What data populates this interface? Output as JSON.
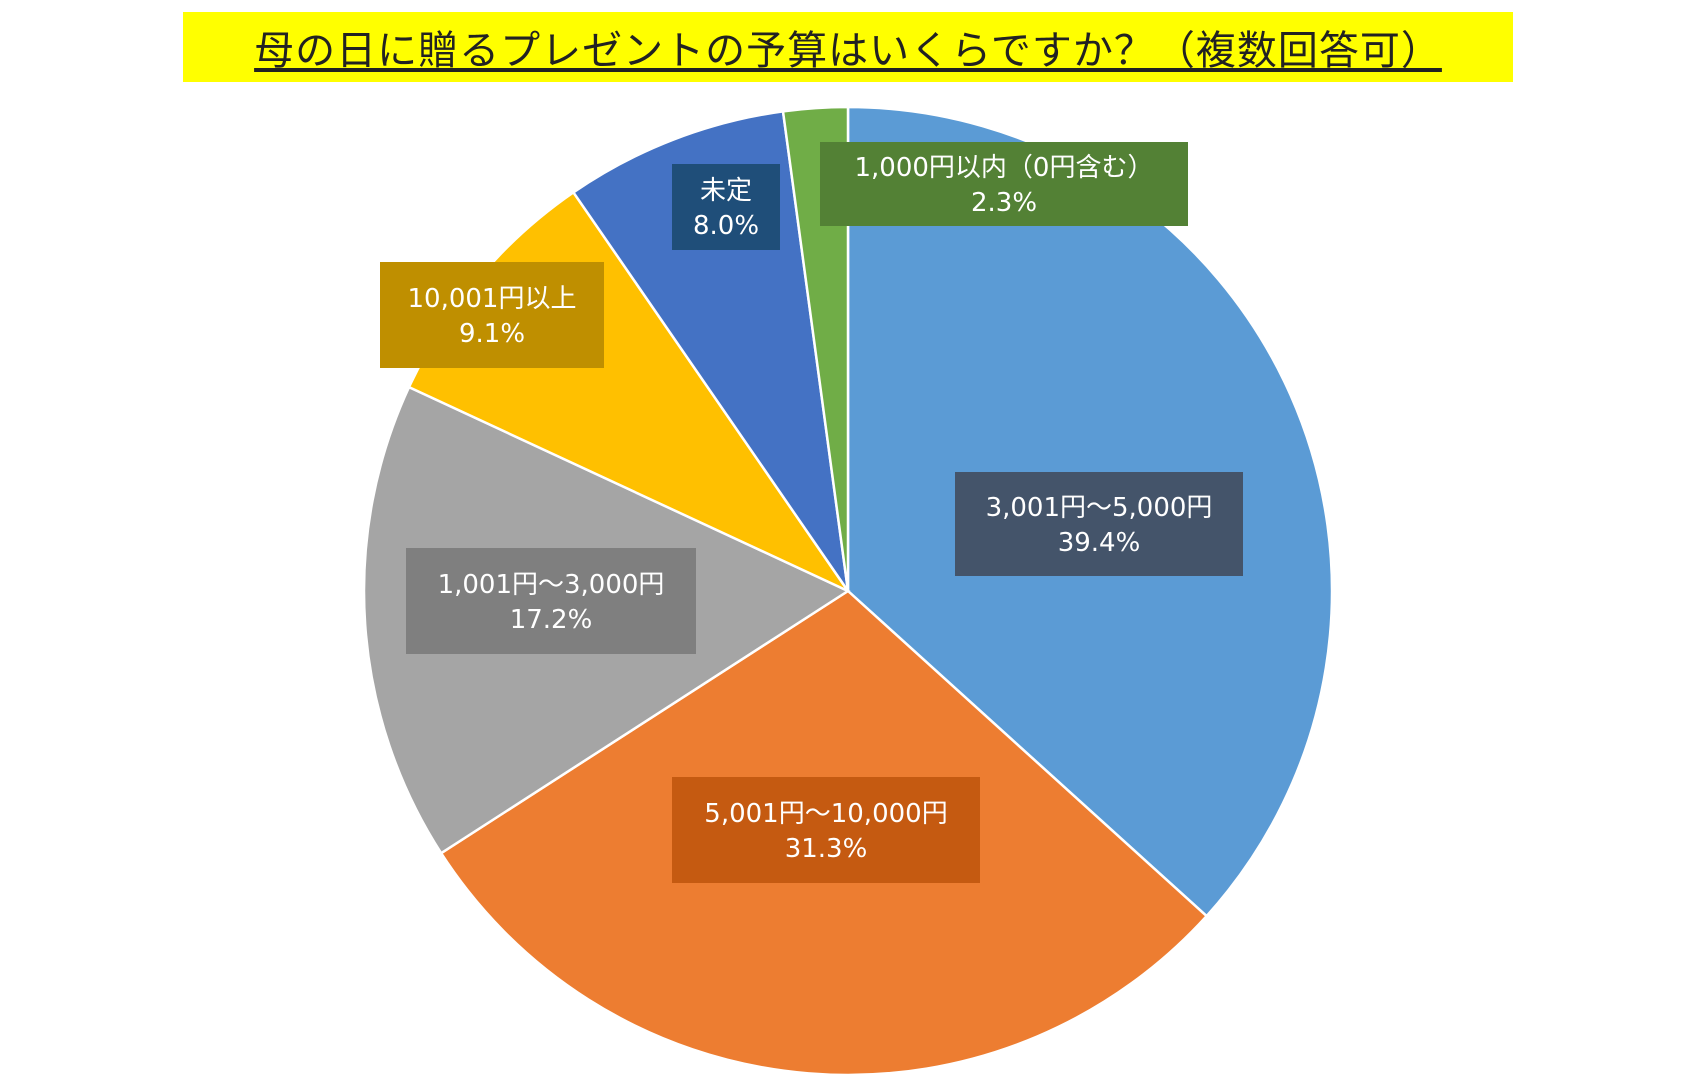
{
  "chart_data": {
    "type": "pie",
    "title": "母の日に贈るプレゼントの予算はいくらですか？（複数回答可）",
    "slices": [
      {
        "label": "3,001円～5,000円",
        "value": 39.4,
        "value_label": "39.4%",
        "color": "#5b9bd5",
        "label_bg": "#44546a"
      },
      {
        "label": "5,001円～10,000円",
        "value": 31.3,
        "value_label": "31.3%",
        "color": "#ed7d31",
        "label_bg": "#c55a11"
      },
      {
        "label": "1,001円～3,000円",
        "value": 17.2,
        "value_label": "17.2%",
        "color": "#a5a5a5",
        "label_bg": "#7f7f7f"
      },
      {
        "label": "10,001円以上",
        "value": 9.1,
        "value_label": "9.1%",
        "color": "#ffc000",
        "label_bg": "#bf8f00"
      },
      {
        "label": "未定",
        "value": 8.0,
        "value_label": "8.0%",
        "color": "#4472c4",
        "label_bg": "#1f4e79"
      },
      {
        "label": "1,000円以内（0円含む）",
        "value": 2.3,
        "value_label": "2.3%",
        "color": "#70ad47",
        "label_bg": "#538135"
      }
    ],
    "legend": "none",
    "title_background": "#ffff00"
  }
}
